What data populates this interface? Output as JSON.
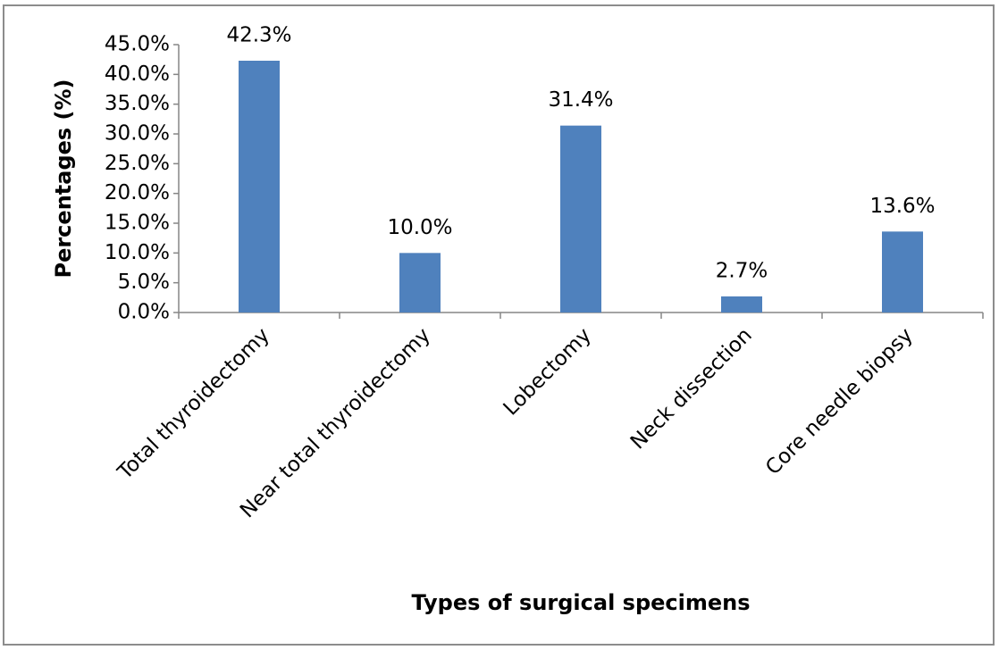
{
  "chart_data": {
    "type": "bar",
    "categories": [
      "Total thyroidectomy",
      "Near total thyroidectomy",
      "Lobectomy",
      "Neck dissection",
      "Core needle biopsy"
    ],
    "values": [
      42.3,
      10.0,
      31.4,
      2.7,
      13.6
    ],
    "value_labels": [
      "42.3%",
      "10.0%",
      "31.4%",
      "2.7%",
      "13.6%"
    ],
    "color": "#4f81bd",
    "ylabel": "Percentages (%)",
    "xlabel": "Types of surgical specimens",
    "ylim": [
      0,
      45
    ],
    "yticks": [
      {
        "value": 0,
        "label": "0.0%"
      },
      {
        "value": 5,
        "label": "5.0%"
      },
      {
        "value": 10,
        "label": "10.0%"
      },
      {
        "value": 15,
        "label": "15.0%"
      },
      {
        "value": 20,
        "label": "20.0%"
      },
      {
        "value": 25,
        "label": "25.0%"
      },
      {
        "value": 30,
        "label": "30.0%"
      },
      {
        "value": 35,
        "label": "35.0%"
      },
      {
        "value": 40,
        "label": "40.0%"
      },
      {
        "value": 45,
        "label": "45.0%"
      }
    ],
    "grid": false
  }
}
